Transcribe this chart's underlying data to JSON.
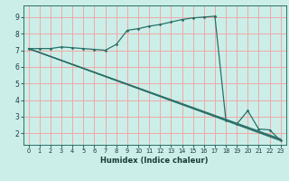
{
  "xlabel": "Humidex (Indice chaleur)",
  "bg_color": "#cceee8",
  "grid_color": "#f0a8a8",
  "line_color": "#2a7068",
  "xlim": [
    -0.5,
    23.5
  ],
  "ylim": [
    1.3,
    9.7
  ],
  "xticks": [
    0,
    1,
    2,
    3,
    4,
    5,
    6,
    7,
    8,
    9,
    10,
    11,
    12,
    13,
    14,
    15,
    16,
    17,
    18,
    19,
    20,
    21,
    22,
    23
  ],
  "yticks": [
    2,
    3,
    4,
    5,
    6,
    7,
    8,
    9
  ],
  "rise_x": [
    0,
    1,
    2,
    3,
    4,
    5,
    6,
    7,
    8,
    9,
    10,
    11,
    12,
    13,
    14,
    15,
    16,
    17
  ],
  "rise_y": [
    7.1,
    7.1,
    7.1,
    7.2,
    7.15,
    7.1,
    7.05,
    7.0,
    7.35,
    8.2,
    8.3,
    8.45,
    8.55,
    8.7,
    8.85,
    8.95,
    9.0,
    9.05
  ],
  "drop_x": [
    17,
    18,
    19,
    20,
    21,
    22,
    23
  ],
  "drop_y": [
    9.05,
    2.8,
    2.55,
    3.35,
    2.25,
    2.2,
    1.55
  ]
}
